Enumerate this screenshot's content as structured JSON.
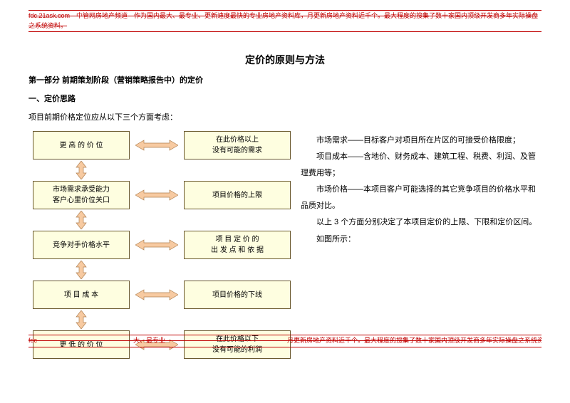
{
  "header_note": "fdc.21ask.com　中管网房地产频道　作为国内最大、最专业、更新速度最快的专业房地产资料库，月更新房地产资料近千个。最大程度的搜集了数十家国内顶级开发商多年实际操盘之系统资料。",
  "title": "定价的原则与方法",
  "section": "第一部分 前期策划阶段（营销策略报告中）的定价",
  "sub": "一、定价思路",
  "intro": "项目前期价格定位应从以下三个方面考虑：",
  "right_paragraphs": [
    "市场需求——目标客户对项目所在片区的可接受价格限度；",
    "项目成本——含地价、财务成本、建筑工程、税费、利润、及管理费用等；",
    "市场价格——本项目客户可能选择的其它竞争项目的价格水平和品质对比。",
    "以上 3 个方面分别决定了本项目定价的上限、下限和定价区间。",
    "如图所示："
  ],
  "chart": {
    "box_bg": "#fefee0",
    "box_border": "#6b5a2e",
    "arrow_fill": "#f7caa1",
    "arrow_stroke": "#b08050",
    "rows": [
      {
        "left": "更 高 的 价 位",
        "right": "在此价格以上\n没有可能的需求"
      },
      {
        "left": "市场需求承受能力\n客户心里价位关口",
        "right": "项目价格的上限"
      },
      {
        "left": "竞争对手价格水平",
        "right": "项 目 定 价 的\n出 发 点 和 依 据"
      },
      {
        "left": "项 目 成 本",
        "right": "项目价格的下线"
      },
      {
        "left": "更 低 的 价 位",
        "right": "在此价格以下\n没有可能的利润"
      }
    ]
  },
  "footer_note": "fdc　　　　　　　　　　　　　　　大、最专业　　　　　　　　　　　　　　　　　　　月更新房地产资料近千个。最大程度的搜集了数十家国内顶级开发商多年实际操盘之系统资料。"
}
